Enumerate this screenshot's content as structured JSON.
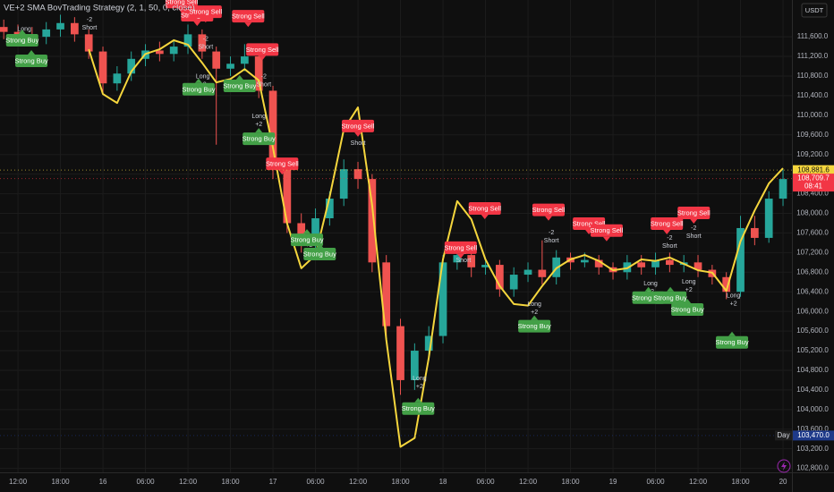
{
  "chart_data": {
    "type": "candlestick",
    "title": "VE+2 SMA BovTrading Strategy (2, 1, 50, 0, close)",
    "currency": "USDT",
    "grid": true,
    "up_color": "#26a69a",
    "down_color": "#ef5350",
    "x": [
      -2,
      0,
      2,
      4,
      6,
      8,
      10,
      12,
      14,
      16,
      18,
      20,
      22,
      24,
      26,
      28,
      30,
      32,
      34,
      36,
      38,
      40,
      42,
      44,
      46,
      48,
      50,
      52,
      54,
      56,
      58,
      60,
      62,
      64,
      66,
      68,
      70,
      72,
      74,
      76,
      78,
      80,
      82,
      84,
      86,
      88,
      90,
      92,
      94,
      96,
      98,
      100,
      102,
      104,
      106,
      108
    ],
    "open": [
      111800,
      111700,
      111650,
      111600,
      111750,
      111880,
      111650,
      111300,
      110650,
      110850,
      111150,
      111320,
      111250,
      111400,
      111650,
      111300,
      110950,
      111050,
      111200,
      110500,
      108900,
      107800,
      107350,
      107900,
      108300,
      108900,
      108700,
      107000,
      105700,
      104600,
      105200,
      105500,
      107000,
      107150,
      106900,
      106950,
      106450,
      106750,
      106850,
      106700,
      107100,
      107000,
      107050,
      106900,
      106800,
      107000,
      106900,
      107050,
      106950,
      107000,
      106850,
      106700,
      106400,
      107700,
      107500,
      108300
    ],
    "high": [
      111950,
      111850,
      111800,
      111900,
      112050,
      112000,
      111750,
      111400,
      111000,
      111300,
      111450,
      111500,
      111550,
      111850,
      111750,
      111400,
      111200,
      111450,
      111300,
      110600,
      109000,
      108000,
      108100,
      108450,
      109100,
      109050,
      108800,
      107150,
      105850,
      105350,
      105700,
      107150,
      107400,
      107300,
      107100,
      107050,
      106900,
      107000,
      107450,
      107250,
      107200,
      107200,
      107150,
      107000,
      107150,
      107150,
      107200,
      107200,
      107150,
      107150,
      106950,
      106800,
      107950,
      107950,
      108450,
      108900
    ],
    "low": [
      111550,
      111500,
      111450,
      111450,
      111600,
      111500,
      111150,
      110450,
      110500,
      110700,
      111000,
      111100,
      111100,
      111250,
      111150,
      109400,
      110800,
      110900,
      110350,
      108700,
      107600,
      107200,
      107200,
      107750,
      108150,
      108500,
      106800,
      105500,
      104300,
      104400,
      105000,
      105350,
      106850,
      106700,
      106750,
      106300,
      106300,
      106600,
      106550,
      106550,
      106850,
      106900,
      106750,
      106650,
      106650,
      106750,
      106750,
      106800,
      106800,
      106700,
      106550,
      106250,
      106300,
      107350,
      107400,
      108150
    ],
    "close": [
      111700,
      111650,
      111600,
      111750,
      111880,
      111650,
      111300,
      110650,
      110850,
      111150,
      111320,
      111250,
      111400,
      111650,
      111300,
      110950,
      111050,
      111200,
      110500,
      108900,
      107800,
      107350,
      107900,
      108300,
      108900,
      108700,
      107000,
      105700,
      104600,
      105200,
      105500,
      107000,
      107150,
      106900,
      106950,
      106450,
      106750,
      106850,
      106700,
      107100,
      107000,
      107050,
      106900,
      106800,
      107000,
      106900,
      107050,
      106950,
      107000,
      106850,
      106700,
      106400,
      107700,
      107500,
      108300,
      108700
    ],
    "sma": {
      "color": "#f5d63d",
      "values": [
        null,
        null,
        null,
        null,
        null,
        null,
        111345,
        110434,
        110250,
        110890,
        111250,
        111345,
        111530,
        111440,
        111070,
        110670,
        110740,
        110940,
        110710,
        109340,
        107790,
        106880,
        107150,
        108340,
        109710,
        110160,
        108160,
        105420,
        103240,
        103420,
        105060,
        107060,
        108250,
        107880,
        107060,
        106520,
        106150,
        106120,
        106520,
        106880,
        107060,
        107150,
        107030,
        106840,
        106880,
        107060,
        107030,
        107100,
        106970,
        106840,
        106790,
        106420,
        107430,
        108060,
        108610,
        108920
      ]
    },
    "xlim": [
      -2.53,
      109.26
    ],
    "ylim": [
      102720,
      112350
    ],
    "xticks": [
      {
        "value": 0,
        "label": "12:00"
      },
      {
        "value": 6,
        "label": "18:00"
      },
      {
        "value": 12,
        "label": "16"
      },
      {
        "value": 18,
        "label": "06:00"
      },
      {
        "value": 24,
        "label": "12:00"
      },
      {
        "value": 30,
        "label": "18:00"
      },
      {
        "value": 36,
        "label": "17"
      },
      {
        "value": 42,
        "label": "06:00"
      },
      {
        "value": 48,
        "label": "12:00"
      },
      {
        "value": 54,
        "label": "18:00"
      },
      {
        "value": 60,
        "label": "18"
      },
      {
        "value": 66,
        "label": "06:00"
      },
      {
        "value": 72,
        "label": "12:00"
      },
      {
        "value": 78,
        "label": "18:00"
      },
      {
        "value": 84,
        "label": "19"
      },
      {
        "value": 90,
        "label": "06:00"
      },
      {
        "value": 96,
        "label": "12:00"
      },
      {
        "value": 102,
        "label": "18:00"
      },
      {
        "value": 108,
        "label": "20"
      }
    ],
    "yticks": [
      {
        "value": 102800,
        "label": "102,800.0"
      },
      {
        "value": 103200,
        "label": "103,200.0"
      },
      {
        "value": 103600,
        "label": "103,600.0"
      },
      {
        "value": 104000,
        "label": "104,000.0"
      },
      {
        "value": 104400,
        "label": "104,400.0"
      },
      {
        "value": 104800,
        "label": "104,800.0"
      },
      {
        "value": 105200,
        "label": "105,200.0"
      },
      {
        "value": 105600,
        "label": "105,600.0"
      },
      {
        "value": 106000,
        "label": "106,000.0"
      },
      {
        "value": 106400,
        "label": "106,400.0"
      },
      {
        "value": 106800,
        "label": "106,800.0"
      },
      {
        "value": 107200,
        "label": "107,200.0"
      },
      {
        "value": 107600,
        "label": "107,600.0"
      },
      {
        "value": 108000,
        "label": "108,000.0"
      },
      {
        "value": 108400,
        "label": "108,400.0"
      },
      {
        "value": 108800,
        "label": "108,800.0"
      },
      {
        "value": 109200,
        "label": "109,200.0"
      },
      {
        "value": 109600,
        "label": "109,600.0"
      },
      {
        "value": 110000,
        "label": "110,000.0"
      },
      {
        "value": 110400,
        "label": "110,400.0"
      },
      {
        "value": 110800,
        "label": "110,800.0"
      },
      {
        "value": 111200,
        "label": "111,200.0"
      },
      {
        "value": 111600,
        "label": "111,600.0"
      }
    ],
    "sell_color": "#f23645",
    "buy_color": "#43a047",
    "sell_signals": [
      {
        "label": "Strong Sell",
        "x": 23.1,
        "y": 112310
      },
      {
        "label": "Strong Sell",
        "x": 25.3,
        "y": 112040
      },
      {
        "label": "Strong Sell",
        "x": 26.5,
        "y": 112110
      },
      {
        "label": "Strong Sell",
        "x": 32.5,
        "y": 112020
      },
      {
        "label": "Strong Sell",
        "x": 34.5,
        "y": 111340
      },
      {
        "label": "Strong Sell",
        "x": 37.3,
        "y": 109010
      },
      {
        "label": "Strong Sell",
        "x": 48.0,
        "y": 109780
      },
      {
        "label": "Strong Sell",
        "x": 62.5,
        "y": 107300
      },
      {
        "label": "Strong Sell",
        "x": 65.9,
        "y": 108100
      },
      {
        "label": "Strong Sell",
        "x": 74.9,
        "y": 108070
      },
      {
        "label": "Strong Sell",
        "x": 80.6,
        "y": 107790
      },
      {
        "label": "Strong Sell",
        "x": 83.1,
        "y": 107650
      },
      {
        "label": "Strong Sell",
        "x": 91.6,
        "y": 107790
      },
      {
        "label": "Strong Sell",
        "x": 95.4,
        "y": 108010
      }
    ],
    "buy_signals": [
      {
        "label": "Strong Buy",
        "x": 0.6,
        "y": 111530
      },
      {
        "label": "Strong Buy",
        "x": 1.9,
        "y": 111110
      },
      {
        "label": "Strong Buy",
        "x": 25.5,
        "y": 110530
      },
      {
        "label": "Strong Buy",
        "x": 31.3,
        "y": 110600
      },
      {
        "label": "Strong Buy",
        "x": 34.0,
        "y": 109520
      },
      {
        "label": "Strong Buy",
        "x": 40.8,
        "y": 107460
      },
      {
        "label": "Strong Buy",
        "x": 42.6,
        "y": 107170
      },
      {
        "label": "Strong Buy",
        "x": 56.5,
        "y": 104020
      },
      {
        "label": "Strong Buy",
        "x": 72.9,
        "y": 105700
      },
      {
        "label": "Strong Buy",
        "x": 89.0,
        "y": 106280
      },
      {
        "label": "Strong Buy",
        "x": 92.1,
        "y": 106280
      },
      {
        "label": "Strong Buy",
        "x": 94.5,
        "y": 106040
      },
      {
        "label": "Strong Buy",
        "x": 100.8,
        "y": 105370
      }
    ],
    "trade_marks": [
      {
        "lines": [
          "Long",
          "+2"
        ],
        "x": 0.9,
        "y": 111670
      },
      {
        "lines": [
          "-2",
          "Short"
        ],
        "x": 10.1,
        "y": 111860
      },
      {
        "lines": [
          "-2",
          "Short"
        ],
        "x": 26.5,
        "y": 111470
      },
      {
        "lines": [
          "Long",
          "+2"
        ],
        "x": 26.1,
        "y": 110710
      },
      {
        "lines": [
          "-2",
          "Short"
        ],
        "x": 34.7,
        "y": 110710
      },
      {
        "lines": [
          "Long",
          "+2"
        ],
        "x": 34.0,
        "y": 109890
      },
      {
        "lines": [
          "Short"
        ],
        "x": 48.0,
        "y": 109430
      },
      {
        "lines": [
          "Long",
          "+2"
        ],
        "x": 41.1,
        "y": 107430
      },
      {
        "lines": [
          "Long",
          "+2"
        ],
        "x": 56.7,
        "y": 104550
      },
      {
        "lines": [
          "-2",
          "Short"
        ],
        "x": 62.9,
        "y": 107120
      },
      {
        "lines": [
          "-2",
          "Short"
        ],
        "x": 75.3,
        "y": 107520
      },
      {
        "lines": [
          "Long",
          "+2"
        ],
        "x": 72.9,
        "y": 106060
      },
      {
        "lines": [
          "-2",
          "Short"
        ],
        "x": 92.0,
        "y": 107410
      },
      {
        "lines": [
          "-2",
          "Short"
        ],
        "x": 95.4,
        "y": 107610
      },
      {
        "lines": [
          "Long",
          "+2"
        ],
        "x": 89.3,
        "y": 106480
      },
      {
        "lines": [
          "Long",
          "+2"
        ],
        "x": 94.7,
        "y": 106520
      },
      {
        "lines": [
          "Long",
          "+2"
        ],
        "x": 101.0,
        "y": 106240
      }
    ],
    "price_tags": [
      {
        "label": "108,881.6",
        "value": 108881.6,
        "color": "#f5d63d",
        "text_color": "#131313"
      },
      {
        "label": "108,709.7",
        "value": 108709.7,
        "color": "#f23645",
        "text_color": "#ffffff",
        "sub": "08:41"
      },
      {
        "label": "103,470.0",
        "value": 103470.0,
        "color": "#1e3a8a",
        "text_color": "#ffffff",
        "note": "Day"
      }
    ]
  }
}
